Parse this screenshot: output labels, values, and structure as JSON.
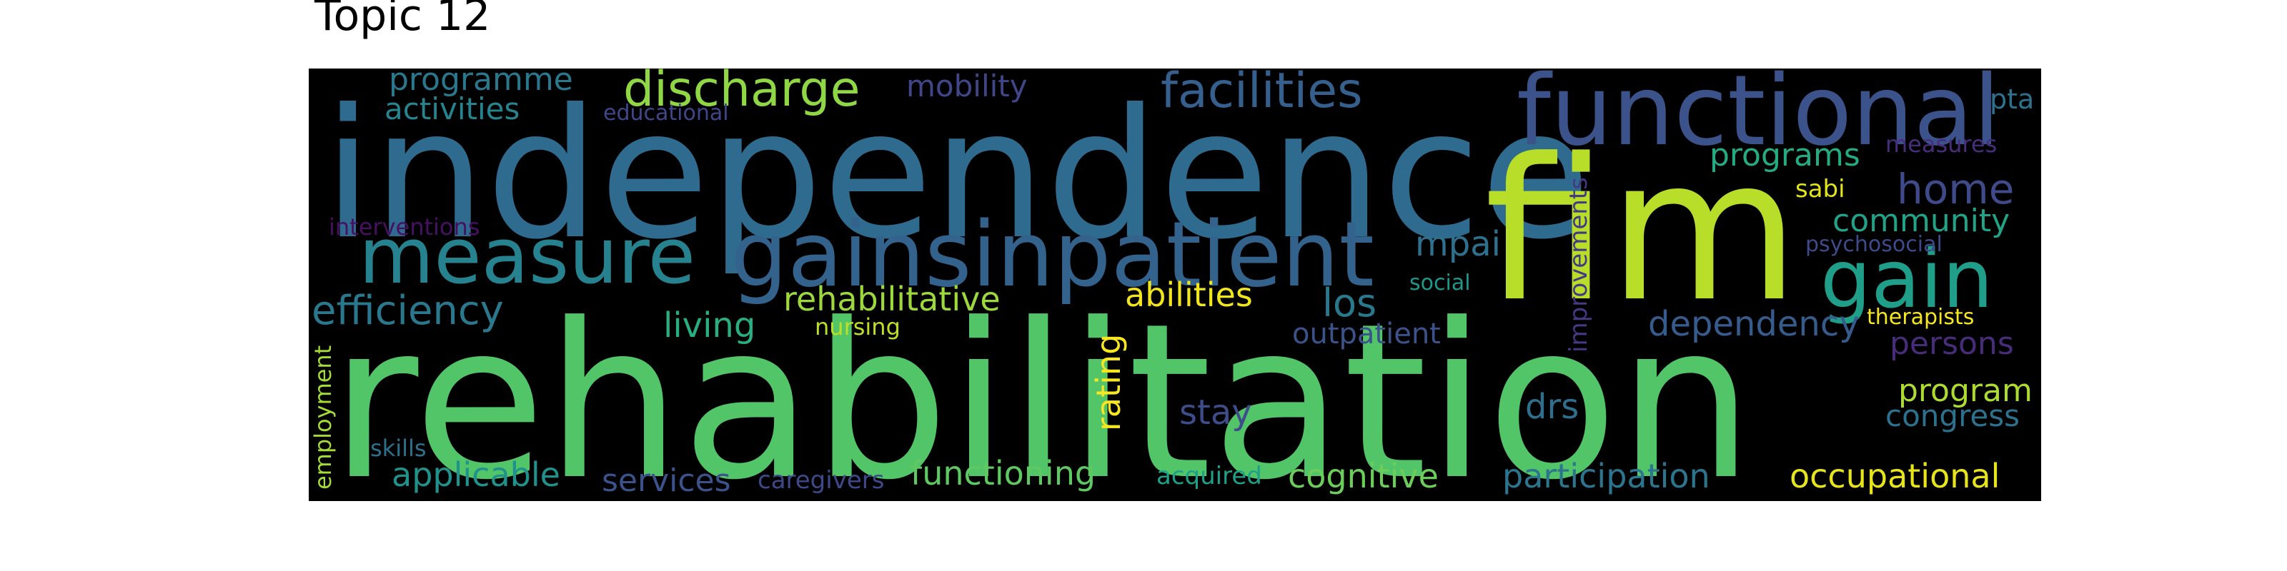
{
  "title": "Topic 12",
  "words": [
    {
      "text": "rehabilitation",
      "color": "#53c569"
    },
    {
      "text": "independence",
      "color": "#2f6b8e"
    },
    {
      "text": "fim",
      "color": "#b8de29"
    },
    {
      "text": "functional",
      "color": "#3b528b"
    },
    {
      "text": "gainsinpatient",
      "color": "#33638d"
    },
    {
      "text": "measure",
      "color": "#26828e"
    },
    {
      "text": "gain",
      "color": "#1f9e89"
    },
    {
      "text": "discharge",
      "color": "#8fd744"
    },
    {
      "text": "facilities",
      "color": "#355f8d"
    },
    {
      "text": "home",
      "color": "#3e4a89"
    },
    {
      "text": "programme",
      "color": "#2a788e"
    },
    {
      "text": "activities",
      "color": "#25848e"
    },
    {
      "text": "educational",
      "color": "#3f4788"
    },
    {
      "text": "mobility",
      "color": "#404688"
    },
    {
      "text": "pta",
      "color": "#2c728e"
    },
    {
      "text": "programs",
      "color": "#25ab82"
    },
    {
      "text": "measures",
      "color": "#472d7b"
    },
    {
      "text": "sabi",
      "color": "#e3e418"
    },
    {
      "text": "community",
      "color": "#20a386"
    },
    {
      "text": "psychosocial",
      "color": "#3e4a89"
    },
    {
      "text": "interventions",
      "color": "#471063"
    },
    {
      "text": "mpai",
      "color": "#2d718e"
    },
    {
      "text": "improvements",
      "color": "#443983"
    },
    {
      "text": "social",
      "color": "#1f988b"
    },
    {
      "text": "efficiency",
      "color": "#2a788e"
    },
    {
      "text": "rehabilitative",
      "color": "#9dd93b"
    },
    {
      "text": "abilities",
      "color": "#f1e51d"
    },
    {
      "text": "los",
      "color": "#29798e"
    },
    {
      "text": "living",
      "color": "#28ae80"
    },
    {
      "text": "nursing",
      "color": "#bddf26"
    },
    {
      "text": "outpatient",
      "color": "#3b528b"
    },
    {
      "text": "dependency",
      "color": "#365c8d"
    },
    {
      "text": "therapists",
      "color": "#f6e620"
    },
    {
      "text": "persons",
      "color": "#472c7a"
    },
    {
      "text": "rating",
      "color": "#f8e621"
    },
    {
      "text": "stay",
      "color": "#3e4c8a"
    },
    {
      "text": "drs",
      "color": "#2e6f8e"
    },
    {
      "text": "program",
      "color": "#addc30"
    },
    {
      "text": "congress",
      "color": "#2c728e"
    },
    {
      "text": "employment",
      "color": "#a5db36"
    },
    {
      "text": "skills",
      "color": "#2d708e"
    },
    {
      "text": "applicable",
      "color": "#21918c"
    },
    {
      "text": "services",
      "color": "#3b528b"
    },
    {
      "text": "caregivers",
      "color": "#3e4989"
    },
    {
      "text": "functioning",
      "color": "#5ec962"
    },
    {
      "text": "acquired",
      "color": "#1fa088"
    },
    {
      "text": "cognitive",
      "color": "#6ccd5a"
    },
    {
      "text": "participation",
      "color": "#2b758e"
    },
    {
      "text": "occupational",
      "color": "#e7e419"
    }
  ]
}
